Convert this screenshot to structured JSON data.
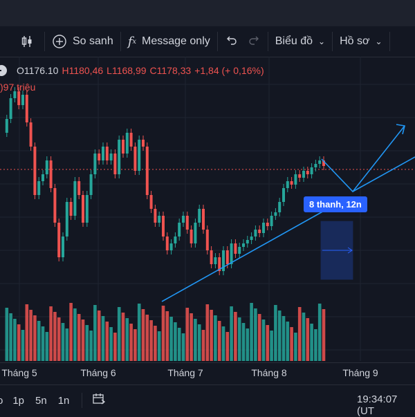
{
  "toolbar": {
    "compare_label": "So sanh",
    "indicator_label": "Message only",
    "chart_menu_label": "Biểu đồ",
    "profile_menu_label": "Hồ sơ"
  },
  "legend": {
    "open": "O1176.10",
    "high": "H1180,46",
    "low": "L1168,99",
    "close": "C1178,33",
    "change": "+1,84 (+ 0,16%)",
    "volume_fragment": ")97 triệu"
  },
  "xaxis": {
    "ticks": [
      "Tháng 5",
      "Tháng 6",
      "Tháng 7",
      "Tháng 8",
      "Tháng 9"
    ]
  },
  "measure_tool": {
    "label": "8 thanh, 12n"
  },
  "bottom": {
    "ranges": [
      "o",
      "1p",
      "5n",
      "1n"
    ],
    "time": "19:34:07 (UT"
  },
  "colors": {
    "up": "#26a69a",
    "down": "#ef5350",
    "accent": "#2962ff",
    "background": "#131722",
    "drawing": "#2196f3"
  },
  "icons": [
    "candle-style-icon",
    "add-compare-icon",
    "indicator-fx-icon",
    "undo-icon",
    "redo-icon",
    "chevron-down-icon",
    "date-range-icon",
    "minus-icon"
  ]
}
